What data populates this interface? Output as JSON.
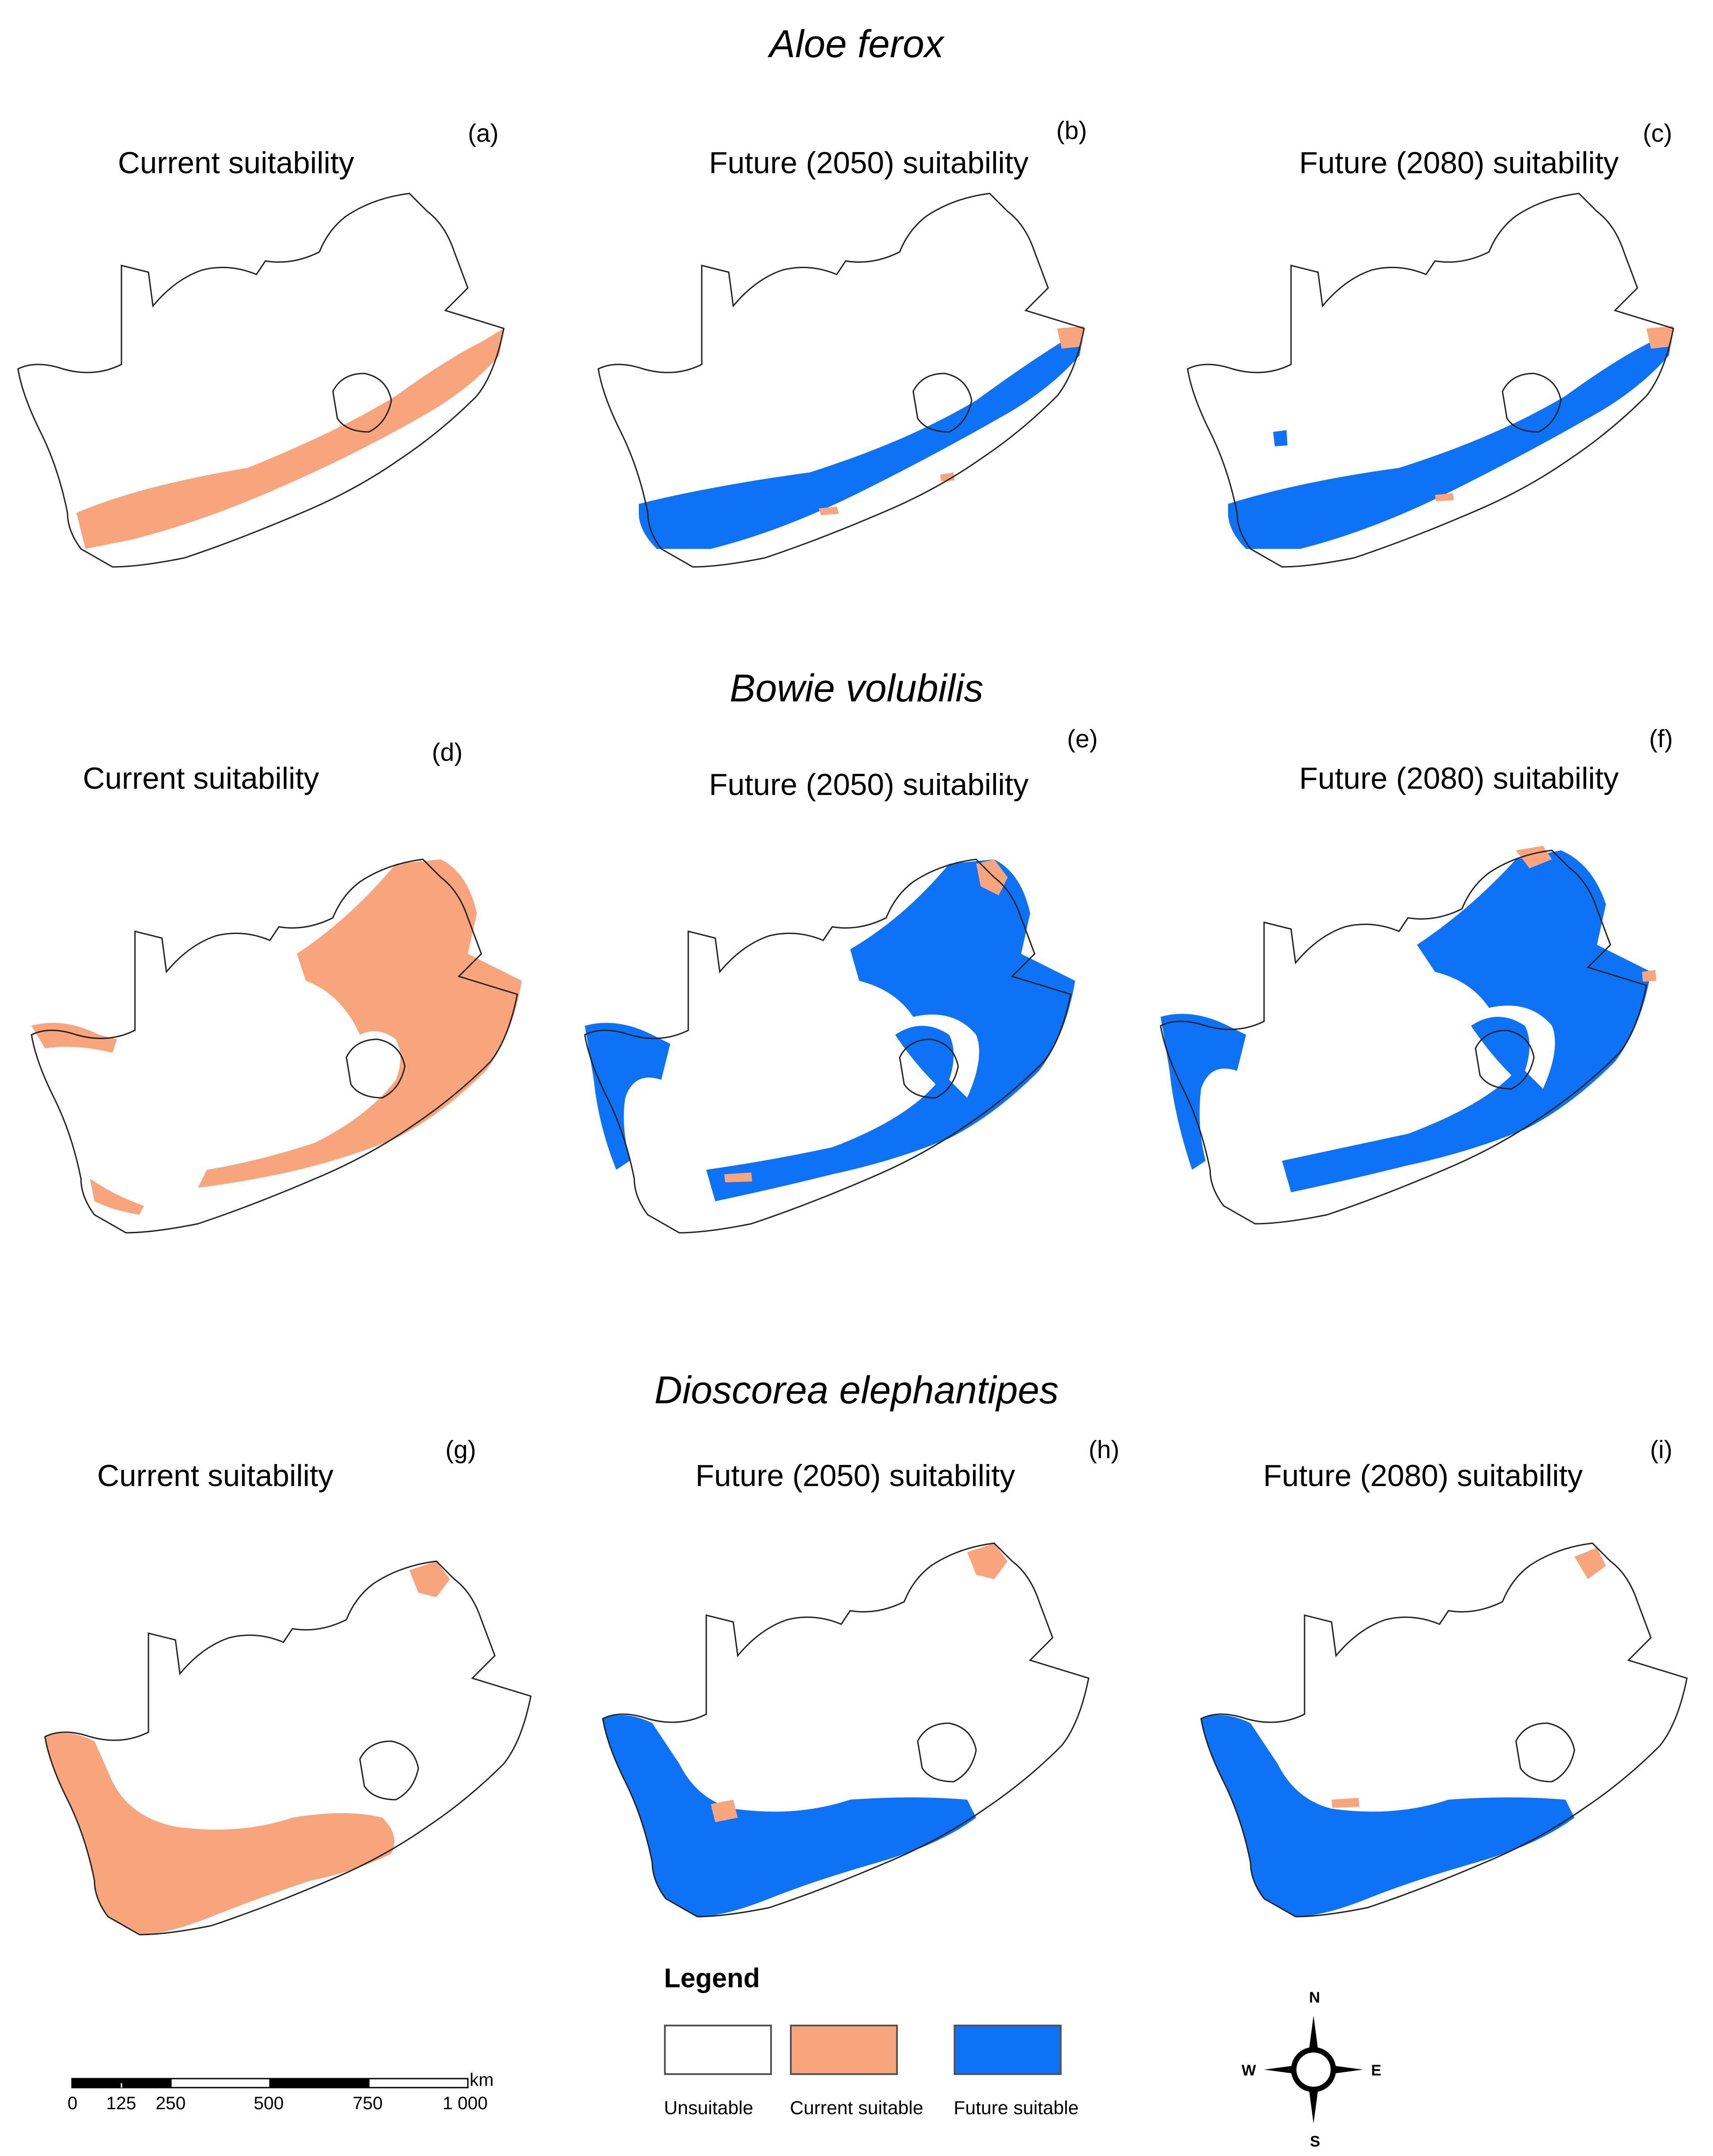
{
  "colors": {
    "unsuitable": "#ffffff",
    "current_suitable": "#f8a47c",
    "future_suitable": "#0d72f5",
    "outline": "#222222"
  },
  "species": [
    {
      "name": "Aloe ferox",
      "panels": [
        {
          "letter": "(a)",
          "title": "Current suitability"
        },
        {
          "letter": "(b)",
          "title": "Future (2050) suitability"
        },
        {
          "letter": "(c)",
          "title": "Future (2080) suitability"
        }
      ]
    },
    {
      "name": "Bowie volubilis",
      "panels": [
        {
          "letter": "(d)",
          "title": "Current suitability"
        },
        {
          "letter": "(e)",
          "title": "Future (2050) suitability"
        },
        {
          "letter": "(f)",
          "title": "Future (2080) suitability"
        }
      ]
    },
    {
      "name": "Dioscorea elephantipes",
      "panels": [
        {
          "letter": "(g)",
          "title": "Current suitability"
        },
        {
          "letter": "(h)",
          "title": "Future (2050) suitability"
        },
        {
          "letter": "(i)",
          "title": "Future (2080) suitability"
        }
      ]
    }
  ],
  "legend": {
    "title": "Legend",
    "items": [
      {
        "label": "Unsuitable"
      },
      {
        "label": "Current suitable"
      },
      {
        "label": "Future suitable"
      }
    ]
  },
  "scale_bar": {
    "unit": "km",
    "ticks": [
      "0",
      "125",
      "250",
      "500",
      "750",
      "1 000"
    ]
  },
  "compass": {
    "n": "N",
    "s": "S",
    "e": "E",
    "w": "W"
  }
}
